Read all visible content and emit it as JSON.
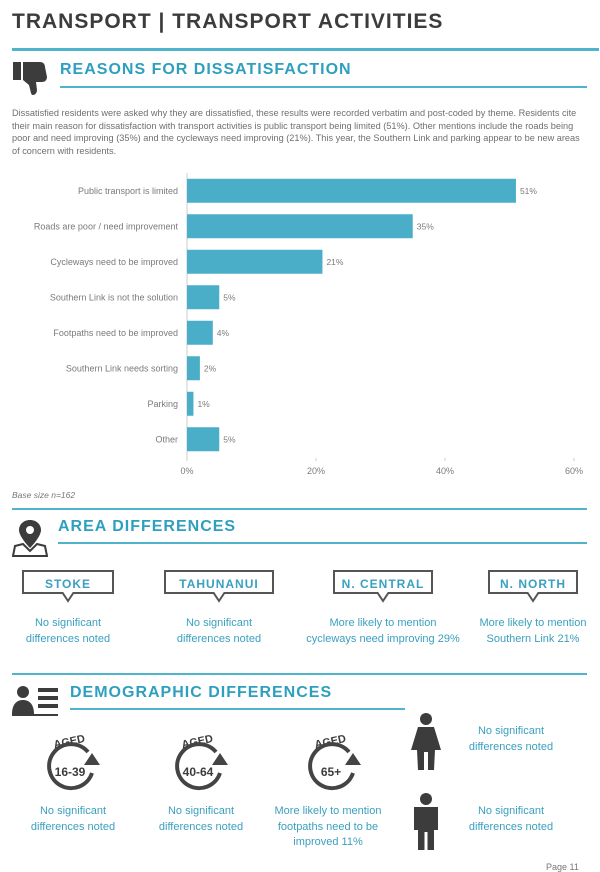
{
  "header": {
    "title": "TRANSPORT | TRANSPORT ACTIVITIES"
  },
  "reasons": {
    "title": "REASONS FOR DISSATISFACTION",
    "intro": "Dissatisfied residents were asked why they are dissatisfied, these results were recorded verbatim and post-coded by theme. Residents cite their main reason for dissatisfaction with transport activities is public transport being limited (51%). Other mentions include the roads being poor and need improving (35%) and the cycleways need improving (21%). This year, the Southern Link and parking appear to be new areas of concern with residents.",
    "base": "Base size n=162"
  },
  "chart_data": {
    "type": "bar",
    "orientation": "horizontal",
    "categories": [
      "Public transport is limited",
      "Roads are poor / need improvement",
      "Cycleways need to be improved",
      "Southern Link is not the solution",
      "Footpaths need to be improved",
      "Southern Link needs sorting",
      "Parking",
      "Other"
    ],
    "values": [
      51,
      35,
      21,
      5,
      4,
      2,
      1,
      5
    ],
    "value_labels": [
      "51%",
      "35%",
      "21%",
      "5%",
      "4%",
      "2%",
      "1%",
      "5%"
    ],
    "xlim": [
      0,
      60
    ],
    "xticks": [
      "0%",
      "20%",
      "40%",
      "60%"
    ],
    "bar_color": "#4aaec8",
    "grid": false
  },
  "area": {
    "title": "AREA DIFFERENCES",
    "items": [
      {
        "name": "STOKE",
        "text1": "No significant",
        "text2": "differences noted"
      },
      {
        "name": "TAHUNANUI",
        "text1": "No significant",
        "text2": "differences noted"
      },
      {
        "name": "N. CENTRAL",
        "text1": "More likely to mention",
        "text2": "cycleways need improving 29%"
      },
      {
        "name": "N. NORTH",
        "text1": "More likely to mention",
        "text2": "Southern Link 21%"
      }
    ]
  },
  "demographic": {
    "title": "DEMOGRAPHIC DIFFERENCES",
    "aged_label": "AGED",
    "ages": [
      {
        "range": "16-39",
        "text": [
          "No significant",
          "differences noted"
        ]
      },
      {
        "range": "40-64",
        "text": [
          "No significant",
          "differences noted"
        ]
      },
      {
        "range": "65+",
        "text": [
          "More likely to mention",
          "footpaths need to be",
          "improved 11%"
        ]
      }
    ],
    "female_text": [
      "No significant",
      "differences noted"
    ],
    "male_text": [
      "No significant",
      "differences noted"
    ]
  },
  "footer": {
    "page": "Page 11"
  },
  "colors": {
    "accent": "#4fb3cb",
    "bar": "#4aaec8",
    "icon": "#3c3c3c"
  }
}
